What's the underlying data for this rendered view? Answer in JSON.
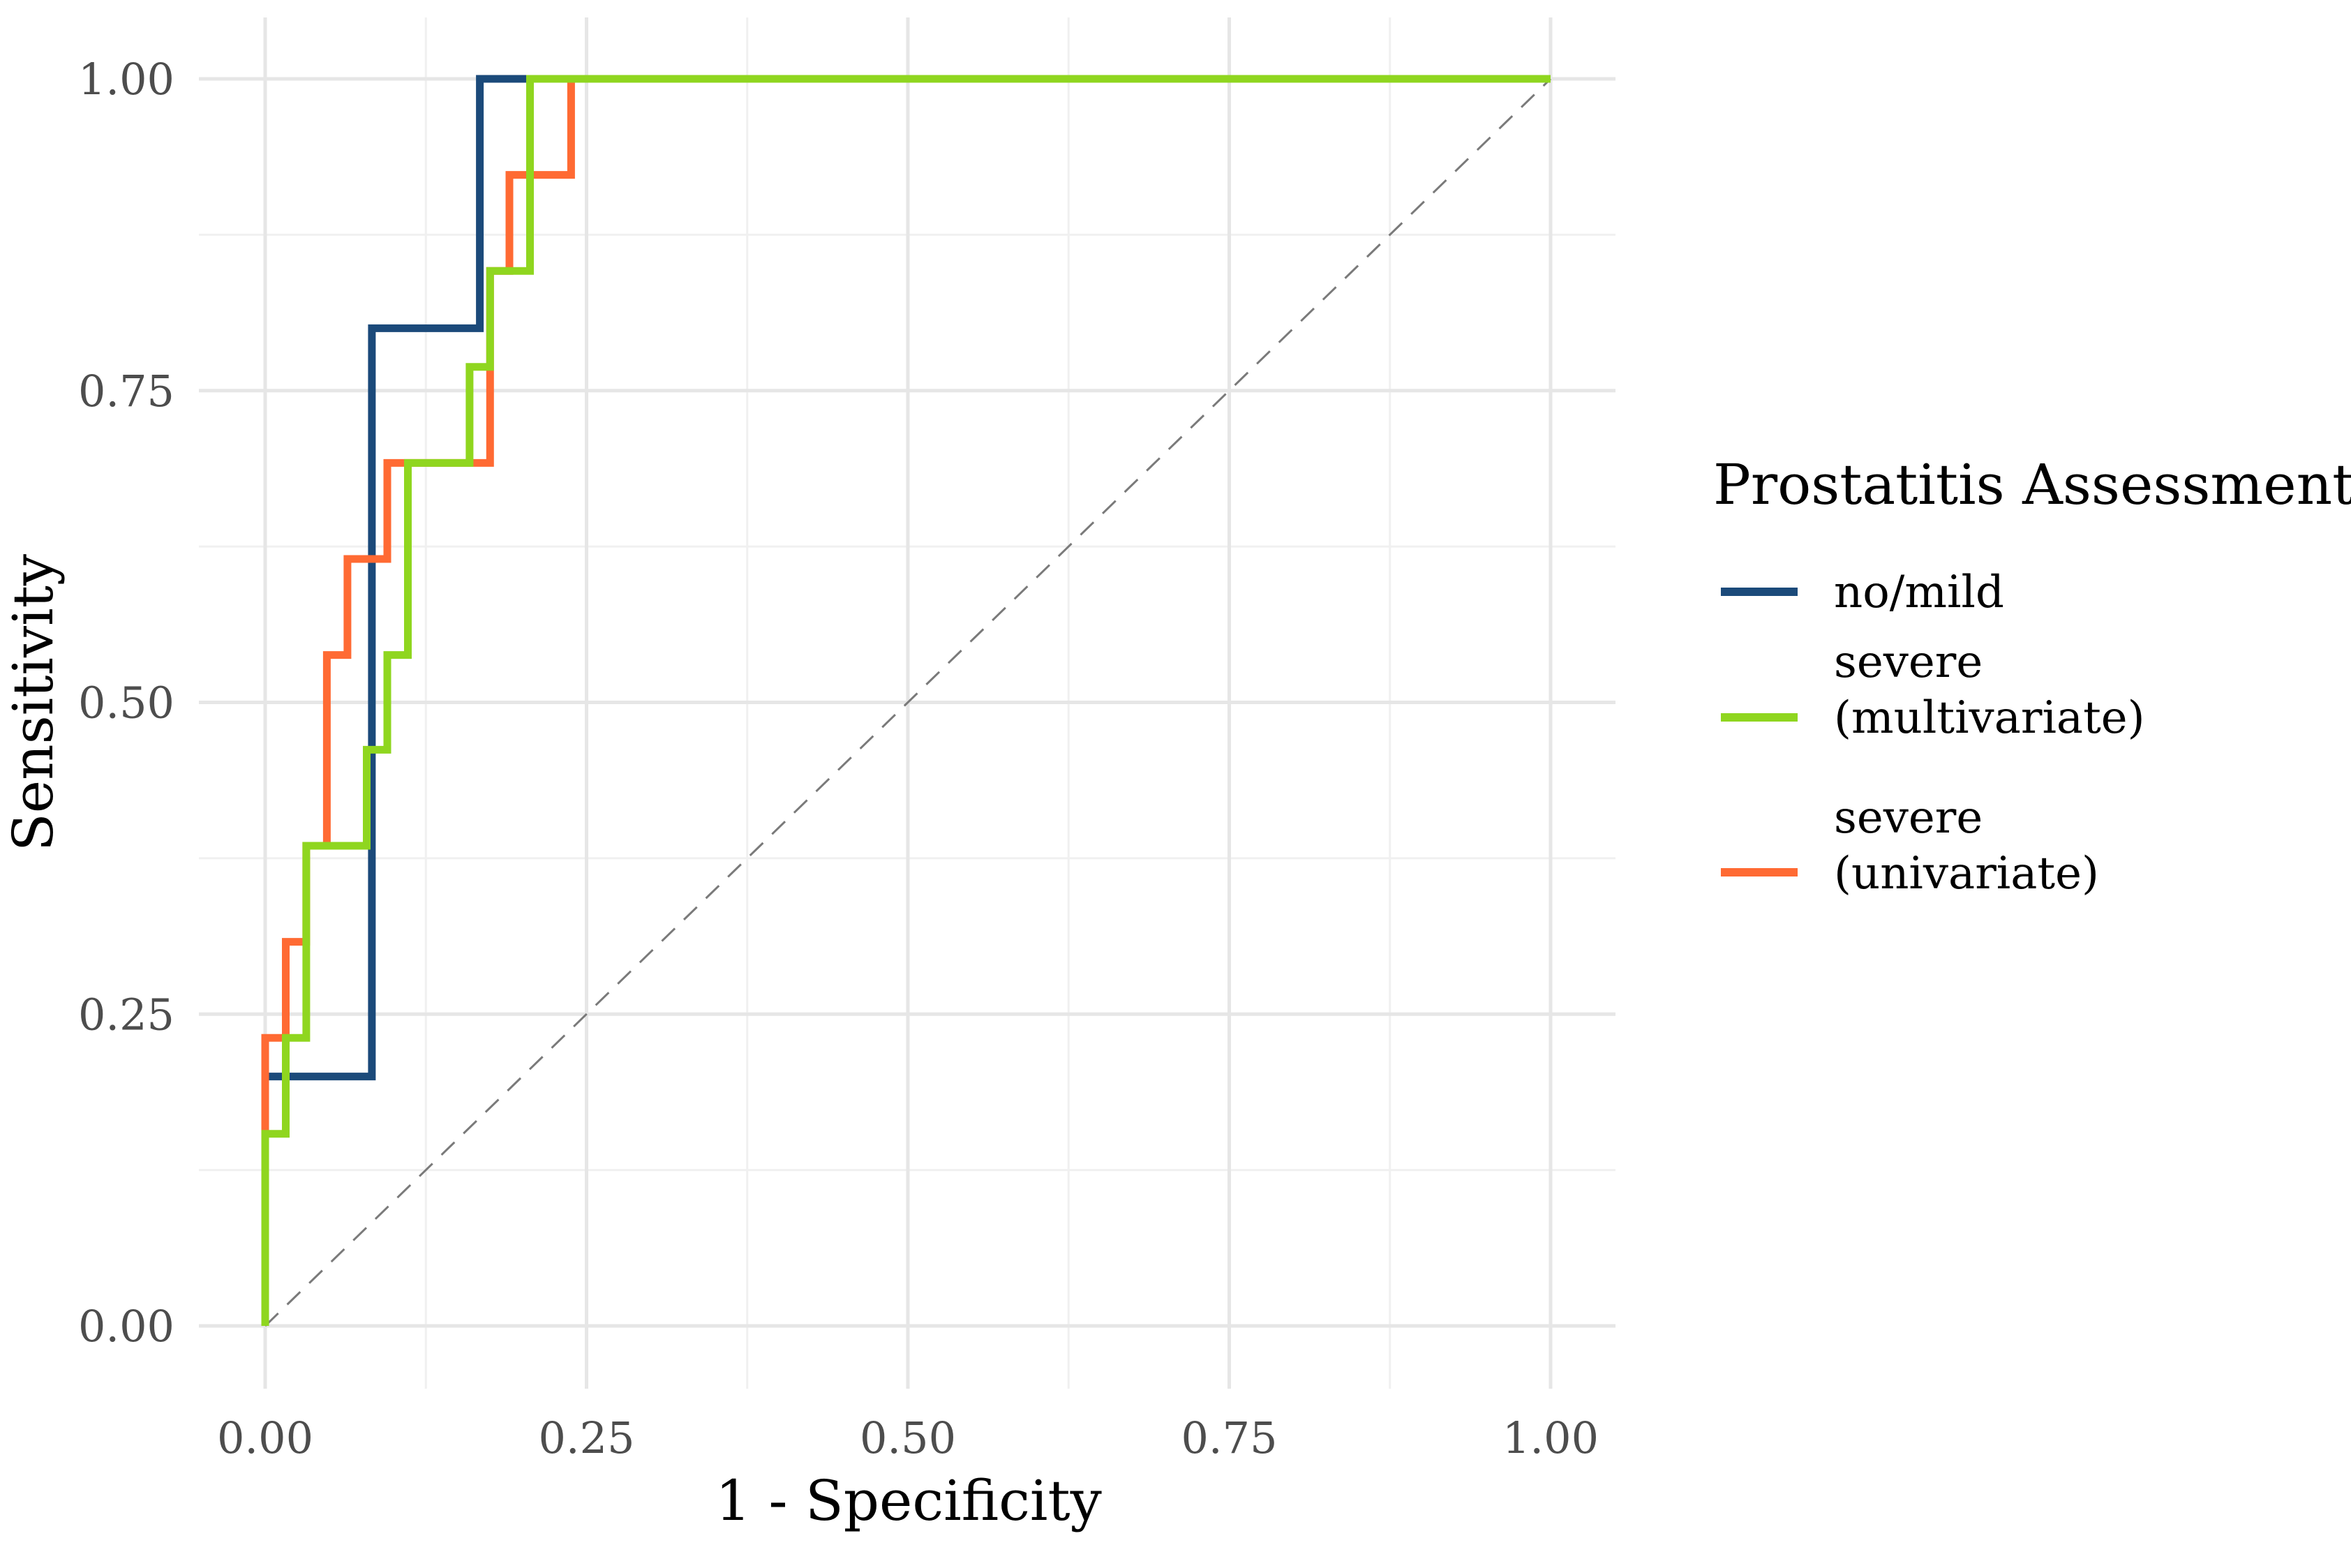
{
  "chart_data": {
    "type": "line",
    "title": "",
    "xlabel": "1 - Specificity",
    "ylabel": "Sensitivity",
    "xlim": [
      0,
      1
    ],
    "ylim": [
      0,
      1
    ],
    "x_ticks": [
      0,
      0.25,
      0.5,
      0.75,
      1
    ],
    "x_tick_labels": [
      "0.00",
      "0.25",
      "0.50",
      "0.75",
      "1.00"
    ],
    "y_ticks": [
      0,
      0.25,
      0.5,
      0.75,
      1
    ],
    "y_tick_labels": [
      "0.00",
      "0.25",
      "0.50",
      "0.75",
      "1.00"
    ],
    "grid": true,
    "reference_line": {
      "from": [
        0,
        0
      ],
      "to": [
        1,
        1
      ],
      "style": "dashed"
    },
    "legend": {
      "title": "Prostatitis Assessment",
      "position": "right"
    },
    "series": [
      {
        "name": "no/mild",
        "label_lines": [
          "no/mild"
        ],
        "color": "#1b4a7a",
        "step": true,
        "x": [
          0,
          0,
          0.083,
          0.083,
          0.167,
          0.167,
          1.0
        ],
        "y": [
          0,
          0.2,
          0.2,
          0.8,
          0.8,
          1.0,
          1.0
        ]
      },
      {
        "name": "severe (univariate)",
        "label_lines": [
          "severe",
          "(univariate)"
        ],
        "color": "#ff6a33",
        "step": true,
        "x": [
          0,
          0,
          0.016,
          0.016,
          0.032,
          0.032,
          0.048,
          0.048,
          0.064,
          0.064,
          0.095,
          0.095,
          0.175,
          0.175,
          0.19,
          0.19,
          0.238,
          0.238,
          1.0
        ],
        "y": [
          0,
          0.231,
          0.231,
          0.308,
          0.308,
          0.385,
          0.385,
          0.538,
          0.538,
          0.615,
          0.615,
          0.692,
          0.692,
          0.846,
          0.846,
          0.923,
          0.923,
          1.0,
          1.0
        ]
      },
      {
        "name": "severe (multivariate)",
        "label_lines": [
          "severe",
          "(multivariate)"
        ],
        "color": "#8fd61f",
        "step": true,
        "x": [
          0,
          0,
          0.016,
          0.016,
          0.032,
          0.032,
          0.079,
          0.079,
          0.095,
          0.095,
          0.111,
          0.111,
          0.159,
          0.159,
          0.175,
          0.175,
          0.206,
          0.206,
          1.0
        ],
        "y": [
          0,
          0.154,
          0.154,
          0.231,
          0.231,
          0.385,
          0.385,
          0.462,
          0.462,
          0.538,
          0.538,
          0.692,
          0.692,
          0.769,
          0.769,
          0.846,
          0.846,
          1.0,
          1.0
        ]
      }
    ],
    "legend_order": [
      "no/mild",
      "severe (multivariate)",
      "severe (univariate)"
    ],
    "draw_order": [
      "no/mild",
      "severe (univariate)",
      "severe (multivariate)"
    ]
  }
}
